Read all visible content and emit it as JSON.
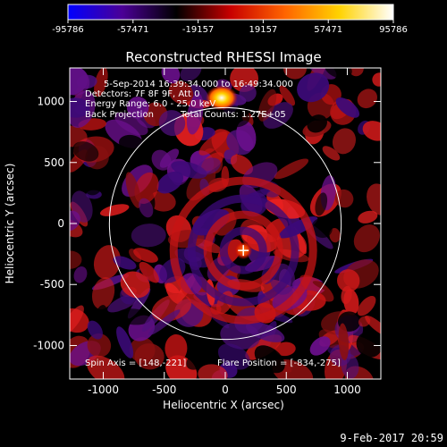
{
  "colorbar": {
    "ticks": [
      "-95786",
      "-57471",
      "-19157",
      "19157",
      "57471",
      "95786"
    ],
    "tick_values": [
      -95786,
      -57471,
      -19157,
      19157,
      57471,
      95786
    ],
    "range": [
      -95786,
      95786
    ],
    "colormap": [
      "#0000ff",
      "#4b0096",
      "#000000",
      "#c80000",
      "#ff6400",
      "#ffd200",
      "#ffffff"
    ]
  },
  "plot": {
    "title": "Reconstructed RHESSI Image",
    "xlabel": "Heliocentric X (arcsec)",
    "ylabel": "Heliocentric Y (arcsec)",
    "xticks": [
      "-1000",
      "-500",
      "0",
      "500",
      "1000"
    ],
    "xtick_values": [
      -1000,
      -500,
      0,
      500,
      1000
    ],
    "yticks": [
      "1000",
      "500",
      "0",
      "-500",
      "-1000"
    ],
    "ytick_values": [
      1000,
      500,
      0,
      -500,
      -1000
    ],
    "xlim": [
      -1275,
      1275
    ],
    "ylim": [
      -1275,
      1275
    ],
    "solar_radius_arcsec": 950
  },
  "annotations": {
    "time": "5-Sep-2014 16:39:34.000 to 16:49:34.000",
    "detectors": "Detectors: 7F 8F 9F, Att 0",
    "energy": "Energy Range: 6.0 - 25.0 keV",
    "method": "Back Projection",
    "counts": "Total Counts: 1.27E+05",
    "spin_axis": "Spin Axis = [148,-221]",
    "flare_position": "Flare Position = [-834,-275]"
  },
  "crosshair": {
    "x": 148,
    "y": -221
  },
  "footer": {
    "date": "9-Feb-2017 20:59"
  },
  "colors": {
    "background": "#000000",
    "foreground": "#ffffff"
  }
}
